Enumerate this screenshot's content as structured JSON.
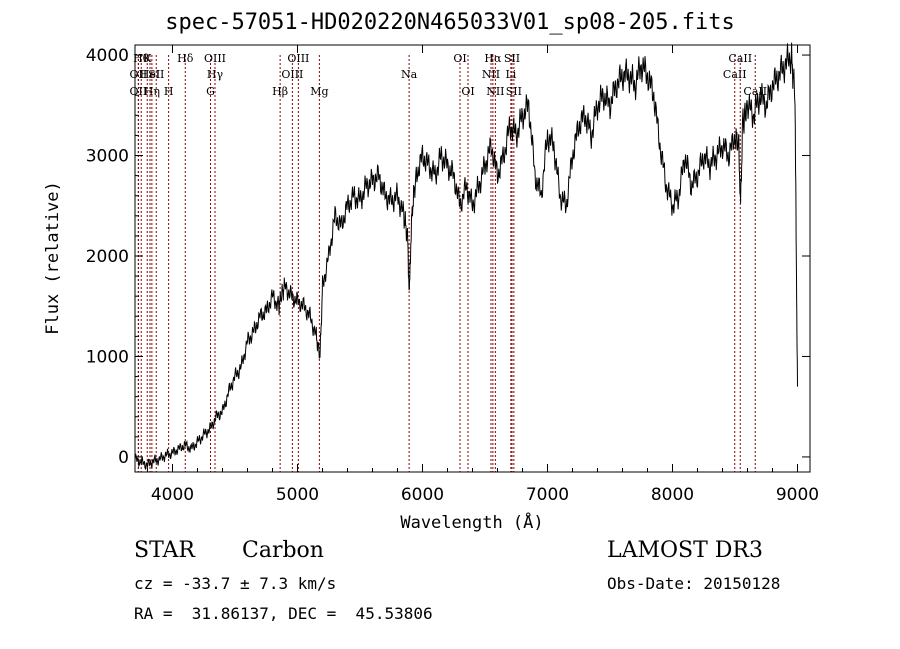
{
  "chart_data": {
    "type": "line",
    "title": "spec-57051-HD020220N465033V01_sp08-205.fits",
    "xlabel": "Wavelength (Å)",
    "ylabel": "Flux (relative)",
    "xlim": [
      3700,
      9100
    ],
    "ylim": [
      -150,
      4100
    ],
    "x_ticks": [
      "4000",
      "5000",
      "6000",
      "7000",
      "8000",
      "9000"
    ],
    "y_ticks": [
      "0",
      "1000",
      "2000",
      "3000",
      "4000"
    ],
    "series": [
      {
        "x": [
          3700,
          3750,
          3800,
          3850,
          3900,
          3950,
          4000,
          4050,
          4100,
          4150,
          4200,
          4250,
          4300,
          4350,
          4400,
          4450,
          4500,
          4550,
          4600,
          4650,
          4700,
          4750,
          4800,
          4850,
          4880,
          4900,
          4950,
          5000,
          5050,
          5100,
          5150,
          5180,
          5200,
          5250,
          5300,
          5350,
          5400,
          5450,
          5500,
          5550,
          5600,
          5650,
          5700,
          5750,
          5800,
          5850,
          5880,
          5895,
          5905,
          5920,
          5950,
          6000,
          6050,
          6100,
          6150,
          6200,
          6250,
          6300,
          6350,
          6400,
          6450,
          6500,
          6550,
          6600,
          6650,
          6700,
          6750,
          6800,
          6850,
          6900,
          6950,
          7000,
          7050,
          7100,
          7150,
          7200,
          7250,
          7300,
          7350,
          7400,
          7450,
          7500,
          7550,
          7600,
          7650,
          7700,
          7750,
          7800,
          7850,
          7900,
          7950,
          8000,
          8050,
          8100,
          8150,
          8200,
          8250,
          8300,
          8350,
          8400,
          8450,
          8500,
          8530,
          8545,
          8560,
          8600,
          8650,
          8700,
          8750,
          8800,
          8850,
          8900,
          8950,
          8980,
          8990,
          9000
        ],
        "y": [
          -20,
          -50,
          -80,
          -40,
          -20,
          20,
          40,
          80,
          120,
          80,
          150,
          220,
          280,
          400,
          450,
          650,
          800,
          900,
          1150,
          1250,
          1400,
          1450,
          1600,
          1500,
          1650,
          1700,
          1600,
          1550,
          1500,
          1400,
          1200,
          1000,
          1700,
          2000,
          2400,
          2300,
          2500,
          2600,
          2550,
          2700,
          2750,
          2800,
          2600,
          2550,
          2600,
          2400,
          2200,
          1600,
          2100,
          2500,
          2800,
          3000,
          2900,
          2800,
          3000,
          2900,
          2800,
          2500,
          2700,
          2500,
          2700,
          2900,
          3100,
          2800,
          3000,
          3300,
          3200,
          3400,
          3500,
          2800,
          2600,
          3200,
          3100,
          2600,
          2500,
          3000,
          3300,
          3400,
          3200,
          3500,
          3600,
          3500,
          3700,
          3800,
          3800,
          3700,
          3900,
          3800,
          3600,
          3100,
          2700,
          2500,
          2600,
          3000,
          2700,
          2800,
          3000,
          2900,
          3000,
          3100,
          3000,
          3200,
          3100,
          2500,
          3300,
          3500,
          3400,
          3600,
          3500,
          3700,
          3800,
          3900,
          4000,
          3600,
          2000,
          700
        ]
      }
    ],
    "lines": [
      {
        "x": 3750,
        "label": "Hθ",
        "row": 1
      },
      {
        "x": 3727,
        "label": "OII",
        "row": 2
      },
      {
        "x": 3727,
        "label": "OII",
        "row": 3
      },
      {
        "x": 3798,
        "label": "K",
        "row": 1
      },
      {
        "x": 3820,
        "label": "HeI",
        "row": 2
      },
      {
        "x": 3835,
        "label": "Hη",
        "row": 3
      },
      {
        "x": 3870,
        "label": "SII",
        "row": 2
      },
      {
        "x": 3969,
        "label": "H",
        "row": 3
      },
      {
        "x": 4102,
        "label": "Hδ",
        "row": 1
      },
      {
        "x": 4340,
        "label": "OIII",
        "row": 1
      },
      {
        "x": 4340,
        "label": "Hγ",
        "row": 2
      },
      {
        "x": 4304,
        "label": "G",
        "row": 3
      },
      {
        "x": 4861,
        "label": "Hβ",
        "row": 3
      },
      {
        "x": 5007,
        "label": "OIII",
        "row": 1
      },
      {
        "x": 4959,
        "label": "OIII",
        "row": 2
      },
      {
        "x": 5175,
        "label": "Mg",
        "row": 3
      },
      {
        "x": 5893,
        "label": "Na",
        "row": 2
      },
      {
        "x": 6300,
        "label": "OI",
        "row": 1
      },
      {
        "x": 6364,
        "label": "OI",
        "row": 3
      },
      {
        "x": 6563,
        "label": "Hα",
        "row": 1
      },
      {
        "x": 6548,
        "label": "NII",
        "row": 2
      },
      {
        "x": 6583,
        "label": "NII",
        "row": 3
      },
      {
        "x": 6716,
        "label": "SII",
        "row": 1
      },
      {
        "x": 6707,
        "label": "Li",
        "row": 2
      },
      {
        "x": 6731,
        "label": "SII",
        "row": 3
      },
      {
        "x": 8542,
        "label": "CaII",
        "row": 1
      },
      {
        "x": 8498,
        "label": "CaII",
        "row": 2
      },
      {
        "x": 8662,
        "label": "CaII",
        "row": 3
      }
    ],
    "grid": false,
    "legend": "none"
  },
  "info": {
    "class_label": "STAR",
    "subclass_label": "Carbon",
    "survey": "LAMOST DR3",
    "cz": "cz = -33.7 ± 7.3 km/s",
    "obs_date": "Obs-Date: 20150128",
    "coords": "RA =  31.86137, DEC =  45.53806"
  },
  "colors": {
    "spectrum": "#000000",
    "marker_lines": "#8b0000",
    "axes": "#000000"
  }
}
